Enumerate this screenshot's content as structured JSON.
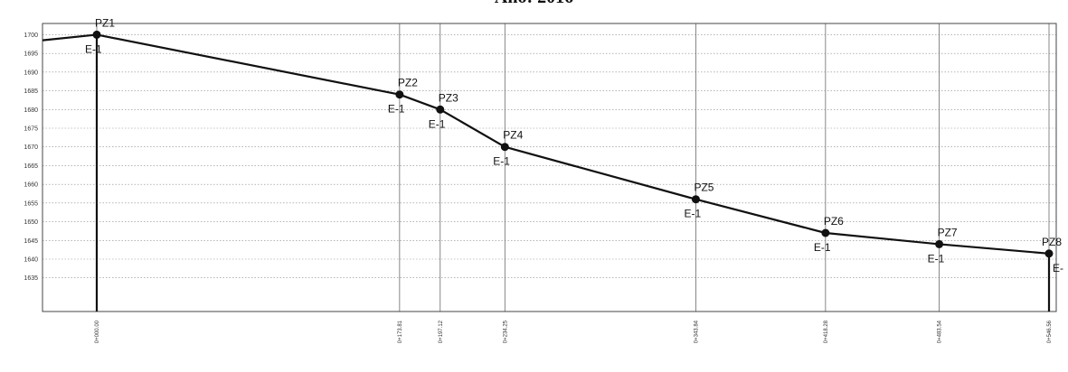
{
  "chart_data": {
    "type": "line",
    "title": "Año: 2016",
    "xlabel": "",
    "ylabel": "",
    "ylim": [
      1626,
      1703
    ],
    "yticks": [
      1700,
      1695,
      1690,
      1685,
      1680,
      1675,
      1670,
      1665,
      1660,
      1655,
      1650,
      1645,
      1640,
      1635
    ],
    "ytick_labels": [
      "1700",
      "1695",
      "1690",
      "1685",
      "1680",
      "1675",
      "1670",
      "1665",
      "1660",
      "1655",
      "1650",
      "1645",
      "1640",
      "1635"
    ],
    "grid": true,
    "series": [
      {
        "values": [
          1700,
          1684,
          1680,
          1670,
          1656,
          1647,
          1644,
          1641.5
        ]
      }
    ],
    "stations": [
      0.0,
      173.81,
      197.12,
      234.25,
      343.84,
      418.28,
      483.54,
      546.56
    ],
    "x_labels": [
      "0+000.00",
      "0+173.81",
      "0+197.12",
      "0+234.25",
      "0+343.84",
      "0+418.28",
      "0+483.54",
      "0+546.56"
    ],
    "point_labels": [
      "PZ1",
      "PZ2",
      "PZ3",
      "PZ4",
      "PZ5",
      "PZ6",
      "PZ7",
      "PZ8"
    ],
    "sub_labels": [
      "E-1",
      "E-1",
      "E-1",
      "E-1",
      "E-1",
      "E-1",
      "E-1",
      "E-"
    ],
    "lead_in": [
      {
        "x": -30,
        "y": 1698.5
      }
    ]
  }
}
